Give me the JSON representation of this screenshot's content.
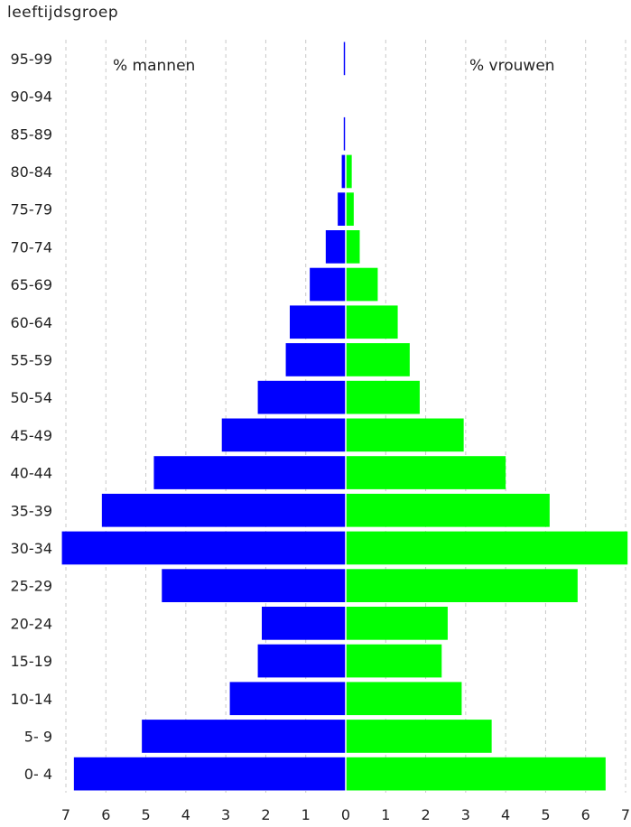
{
  "chart_data": {
    "type": "bar",
    "orientation": "horizontal-population-pyramid",
    "title": "leeftijdsgroep",
    "categories": [
      "95-99",
      "90-94",
      "85-89",
      "80-84",
      "75-79",
      "70-74",
      "65-69",
      "60-64",
      "55-59",
      "50-54",
      "45-49",
      "40-44",
      "35-39",
      "30-34",
      "25-29",
      "20-24",
      "15-19",
      "10-14",
      "5- 9",
      "0- 4"
    ],
    "series": [
      {
        "name": "% mannen",
        "color": "#0000ff",
        "side": "left",
        "values": [
          0.05,
          0.0,
          0.05,
          0.1,
          0.2,
          0.5,
          0.9,
          1.4,
          1.5,
          2.2,
          3.1,
          4.8,
          6.1,
          7.1,
          4.6,
          2.1,
          2.2,
          2.9,
          5.1,
          6.8
        ]
      },
      {
        "name": "% vrouwen",
        "color": "#00ff00",
        "side": "right",
        "values": [
          0.0,
          0.0,
          0.0,
          0.15,
          0.2,
          0.35,
          0.8,
          1.3,
          1.6,
          1.85,
          2.95,
          4.0,
          5.1,
          7.05,
          5.8,
          2.55,
          2.4,
          2.9,
          3.65,
          6.5
        ]
      }
    ],
    "x_ticks": [
      "7",
      "6",
      "5",
      "4",
      "3",
      "2",
      "1",
      "0",
      "1",
      "2",
      "3",
      "4",
      "5",
      "6",
      "7"
    ],
    "xlim": [
      -7,
      7
    ],
    "grid": "vertical-dashed"
  }
}
